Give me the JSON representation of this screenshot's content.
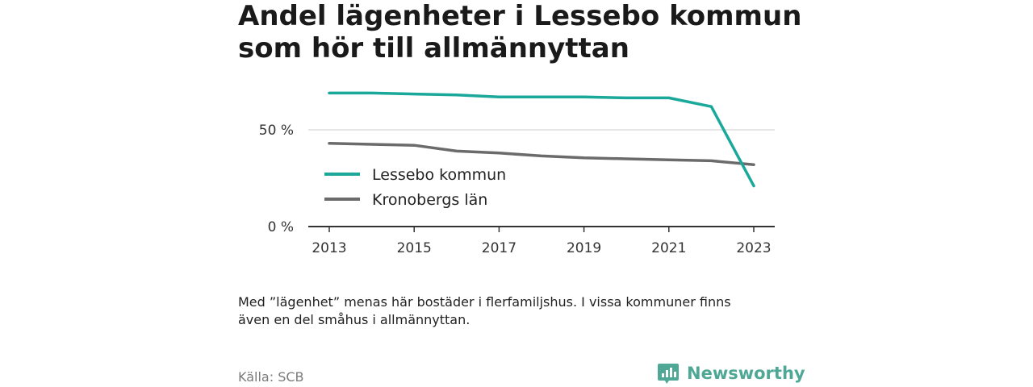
{
  "header": {
    "title_line1": "Andel lägenheter i Lessebo kommun",
    "title_line2": "som hör till allmännyttan"
  },
  "chart_data": {
    "type": "line",
    "x": [
      2013,
      2014,
      2015,
      2016,
      2017,
      2018,
      2019,
      2020,
      2021,
      2022,
      2023
    ],
    "series": [
      {
        "name": "Lessebo kommun",
        "color": "#1aa89b",
        "values": [
          69,
          69,
          68.5,
          68,
          67,
          67,
          67,
          66.5,
          66.5,
          62,
          21
        ]
      },
      {
        "name": "Kronobergs län",
        "color": "#6b6b6b",
        "values": [
          43,
          42.5,
          42,
          39,
          38,
          36.5,
          35.5,
          35,
          34.5,
          34,
          32
        ]
      }
    ],
    "ylim": [
      0,
      75
    ],
    "yticks": [
      {
        "value": 0,
        "label": "0 %"
      },
      {
        "value": 50,
        "label": "50 %"
      }
    ],
    "xticks": [
      2013,
      2015,
      2017,
      2019,
      2021,
      2023
    ],
    "grid": true,
    "legend_placement": "inside-left"
  },
  "footer": {
    "note_line1": "Med ”lägenhet” menas här bostäder i flerfamiljshus. I vissa kommuner finns",
    "note_line2": "även en del småhus i allmännyttan.",
    "source": "Källa: SCB",
    "brand": "Newsworthy",
    "brand_color": "#4fa896"
  }
}
